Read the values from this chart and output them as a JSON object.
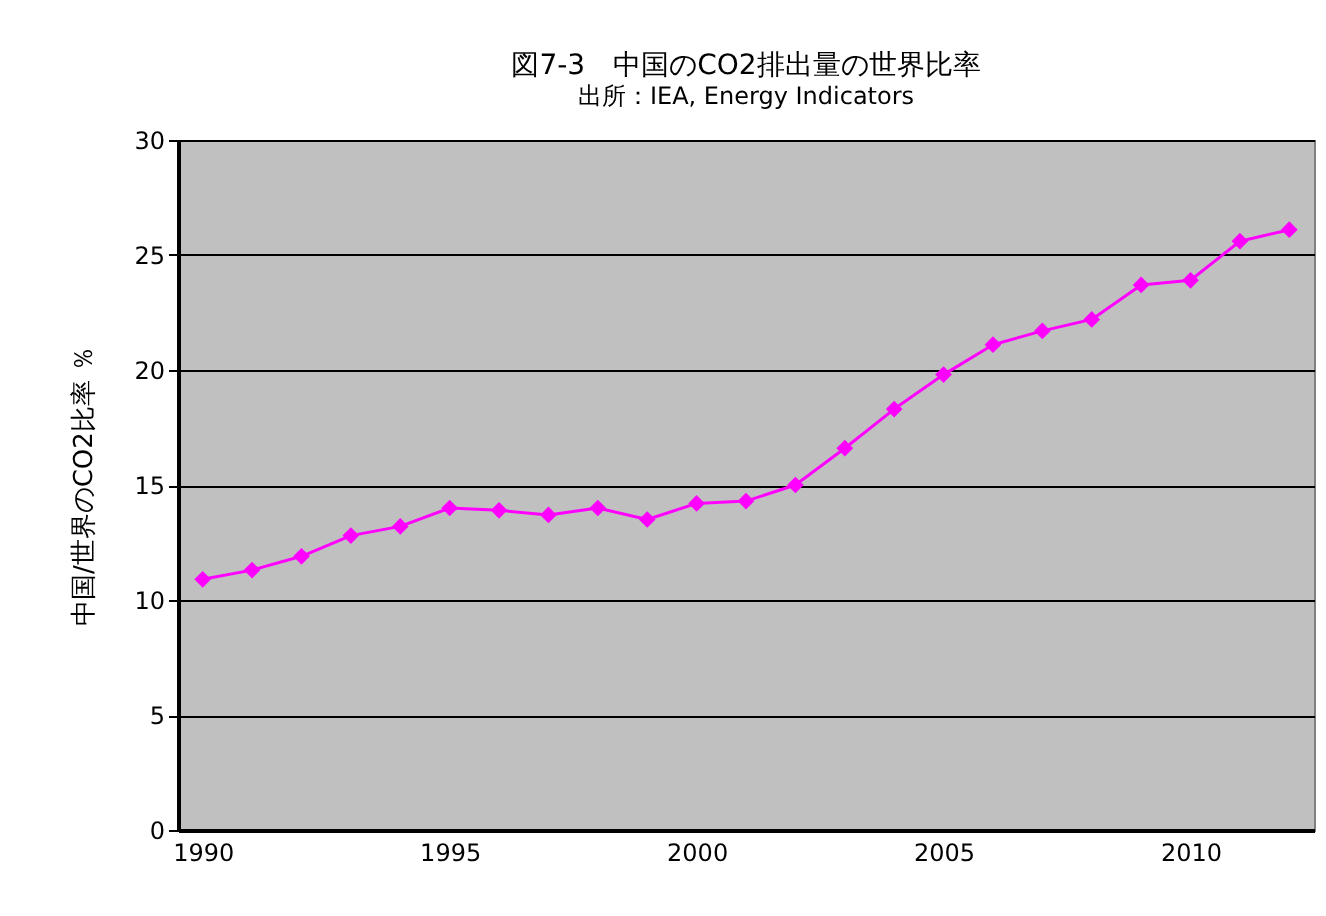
{
  "chart_data": {
    "type": "line",
    "title": "図7-3　中国のCO2排出量の世界比率",
    "subtitle": "出所：IEA, Energy Indicators",
    "ylabel": "中国/世界のCO2比率 ％",
    "categories": [
      "1990",
      null,
      null,
      null,
      null,
      "1995",
      null,
      null,
      null,
      null,
      "2000",
      null,
      null,
      null,
      null,
      "2005",
      null,
      null,
      null,
      null,
      "2010",
      null,
      null
    ],
    "series": [
      {
        "color": "#ff00ff",
        "values": [
          10.9,
          11.3,
          11.9,
          12.8,
          13.2,
          14.0,
          13.9,
          13.7,
          14.0,
          13.5,
          14.2,
          14.3,
          15.0,
          16.6,
          18.3,
          19.8,
          21.1,
          21.7,
          22.2,
          23.7,
          23.9,
          25.6,
          26.1
        ]
      }
    ],
    "ylim": [
      0,
      30
    ],
    "yticks": [
      0,
      5,
      10,
      15,
      20,
      25,
      30
    ],
    "grid": "y",
    "marker": "diamond",
    "line_style": "solid"
  }
}
